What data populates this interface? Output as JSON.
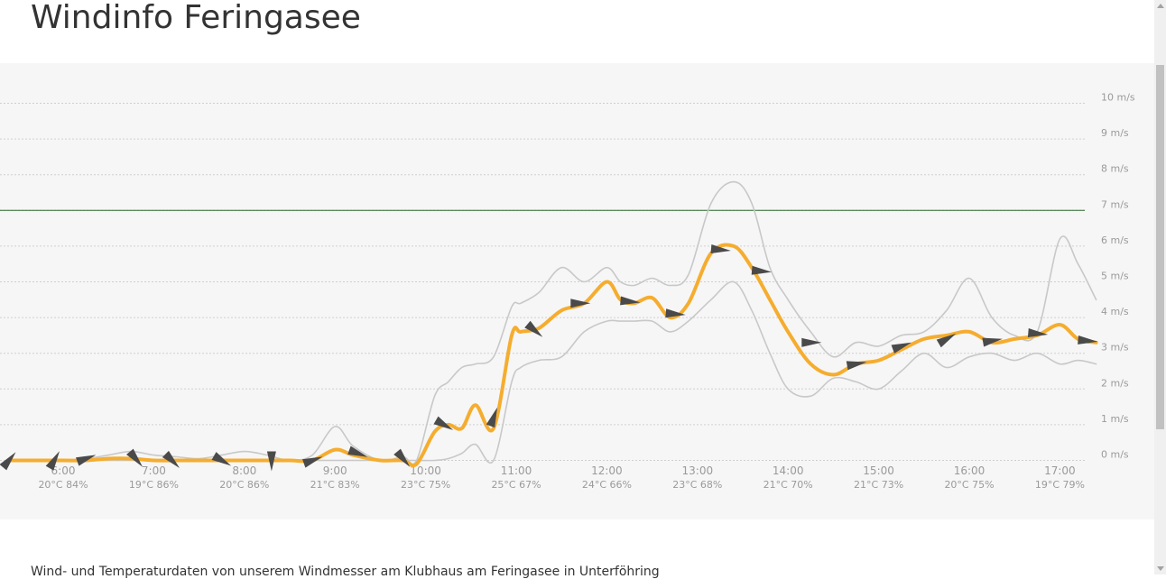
{
  "page": {
    "title": "Windinfo Feringasee",
    "footer": "Wind- und Temperaturdaten von unserem Windmesser am Klubhaus am Feringasee in Unterföhring"
  },
  "chart_data": {
    "type": "line",
    "title": "",
    "xlabel": "",
    "ylabel": "",
    "y_unit": "m/s",
    "ylim": [
      0,
      10
    ],
    "xlim": [
      5.5,
      17.4
    ],
    "grid": true,
    "y_ticks": [
      {
        "value": 0,
        "label": "0 m/s"
      },
      {
        "value": 1,
        "label": "1 m/s"
      },
      {
        "value": 2,
        "label": "2 m/s"
      },
      {
        "value": 3,
        "label": "3 m/s"
      },
      {
        "value": 4,
        "label": "4 m/s"
      },
      {
        "value": 5,
        "label": "5 m/s"
      },
      {
        "value": 6,
        "label": "6 m/s"
      },
      {
        "value": 7,
        "label": "7 m/s"
      },
      {
        "value": 8,
        "label": "8 m/s"
      },
      {
        "value": 9,
        "label": "9 m/s"
      },
      {
        "value": 10,
        "label": "10 m/s"
      }
    ],
    "x_ticks": [
      {
        "hour": 5,
        "time": "",
        "meta": "%"
      },
      {
        "hour": 6,
        "time": "6:00",
        "meta": "20°C 84%"
      },
      {
        "hour": 7,
        "time": "7:00",
        "meta": "19°C 86%"
      },
      {
        "hour": 8,
        "time": "8:00",
        "meta": "20°C 86%"
      },
      {
        "hour": 9,
        "time": "9:00",
        "meta": "21°C 83%"
      },
      {
        "hour": 10,
        "time": "10:00",
        "meta": "23°C 75%"
      },
      {
        "hour": 11,
        "time": "11:00",
        "meta": "25°C 67%"
      },
      {
        "hour": 12,
        "time": "12:00",
        "meta": "24°C 66%"
      },
      {
        "hour": 13,
        "time": "13:00",
        "meta": "23°C 68%"
      },
      {
        "hour": 14,
        "time": "14:00",
        "meta": "21°C 70%"
      },
      {
        "hour": 15,
        "time": "15:00",
        "meta": "21°C 73%"
      },
      {
        "hour": 16,
        "time": "16:00",
        "meta": "20°C 75%"
      },
      {
        "hour": 17,
        "time": "17:00",
        "meta": "19°C 79%"
      }
    ],
    "reference_line": {
      "value": 7,
      "color": "#2e6b2e"
    },
    "series": [
      {
        "role": "average",
        "color": "#f5ad2f",
        "x": [
          5.4,
          5.75,
          6.0,
          6.25,
          6.5,
          6.75,
          7.0,
          7.25,
          7.5,
          7.75,
          8.0,
          8.25,
          8.5,
          8.75,
          9.0,
          9.2,
          9.5,
          9.75,
          9.9,
          10.1,
          10.25,
          10.4,
          10.55,
          10.75,
          10.95,
          11.05,
          11.25,
          11.5,
          11.75,
          12.0,
          12.15,
          12.3,
          12.5,
          12.7,
          12.9,
          13.15,
          13.4,
          13.6,
          13.8,
          14.0,
          14.25,
          14.5,
          14.75,
          15.0,
          15.25,
          15.5,
          15.75,
          16.0,
          16.25,
          16.5,
          16.75,
          17.0,
          17.2,
          17.4
        ],
        "values": [
          0.0,
          0.0,
          0.0,
          0.0,
          0.05,
          0.05,
          0.0,
          0.0,
          0.0,
          0.0,
          0.0,
          0.0,
          0.0,
          0.0,
          0.3,
          0.15,
          0.0,
          0.0,
          -0.1,
          0.8,
          1.0,
          0.9,
          1.55,
          0.9,
          3.5,
          3.6,
          3.7,
          4.2,
          4.4,
          5.0,
          4.5,
          4.4,
          4.55,
          4.0,
          4.4,
          5.8,
          6.0,
          5.4,
          4.5,
          3.6,
          2.7,
          2.4,
          2.7,
          2.8,
          3.1,
          3.4,
          3.5,
          3.6,
          3.3,
          3.4,
          3.5,
          3.8,
          3.4,
          3.3
        ]
      },
      {
        "role": "gust",
        "color": "#c8c8c8",
        "x": [
          5.4,
          5.75,
          6.0,
          6.25,
          6.5,
          6.75,
          7.0,
          7.25,
          7.5,
          7.75,
          8.0,
          8.25,
          8.5,
          8.75,
          9.0,
          9.2,
          9.5,
          9.75,
          9.9,
          10.1,
          10.25,
          10.4,
          10.55,
          10.75,
          10.95,
          11.05,
          11.25,
          11.5,
          11.75,
          12.0,
          12.15,
          12.3,
          12.5,
          12.7,
          12.9,
          13.15,
          13.4,
          13.6,
          13.8,
          14.0,
          14.25,
          14.5,
          14.75,
          15.0,
          15.25,
          15.5,
          15.75,
          16.0,
          16.25,
          16.5,
          16.75,
          17.0,
          17.2,
          17.4
        ],
        "values": [
          0.0,
          0.0,
          0.0,
          0.05,
          0.15,
          0.25,
          0.15,
          0.1,
          0.05,
          0.15,
          0.25,
          0.15,
          0.0,
          0.15,
          0.95,
          0.4,
          0.0,
          0.1,
          0.0,
          1.8,
          2.2,
          2.6,
          2.7,
          2.9,
          4.3,
          4.4,
          4.7,
          5.4,
          5.0,
          5.4,
          5.0,
          4.9,
          5.1,
          4.9,
          5.2,
          7.2,
          7.8,
          7.2,
          5.4,
          4.5,
          3.6,
          2.9,
          3.3,
          3.2,
          3.5,
          3.6,
          4.2,
          5.1,
          4.0,
          3.5,
          3.6,
          6.2,
          5.5,
          4.5
        ]
      },
      {
        "role": "minimum",
        "color": "#c8c8c8",
        "x": [
          5.4,
          5.75,
          6.0,
          6.25,
          6.5,
          6.75,
          7.0,
          7.25,
          7.5,
          7.75,
          8.0,
          8.25,
          8.5,
          8.75,
          9.0,
          9.2,
          9.5,
          9.75,
          9.9,
          10.1,
          10.25,
          10.4,
          10.55,
          10.75,
          10.95,
          11.05,
          11.25,
          11.5,
          11.75,
          12.0,
          12.15,
          12.3,
          12.5,
          12.7,
          12.9,
          13.15,
          13.4,
          13.6,
          13.8,
          14.0,
          14.25,
          14.5,
          14.75,
          15.0,
          15.25,
          15.5,
          15.75,
          16.0,
          16.25,
          16.5,
          16.75,
          17.0,
          17.2,
          17.4
        ],
        "values": [
          0.0,
          0.0,
          0.0,
          0.0,
          0.0,
          0.0,
          0.0,
          0.0,
          0.0,
          0.0,
          0.0,
          0.0,
          0.0,
          0.0,
          0.0,
          0.0,
          0.0,
          0.0,
          0.0,
          0.0,
          0.05,
          0.2,
          0.45,
          0.0,
          2.2,
          2.6,
          2.8,
          2.9,
          3.6,
          3.9,
          3.9,
          3.9,
          3.9,
          3.6,
          3.9,
          4.5,
          5.0,
          4.2,
          3.0,
          2.0,
          1.8,
          2.3,
          2.2,
          2.0,
          2.5,
          3.0,
          2.6,
          2.9,
          3.0,
          2.8,
          3.0,
          2.7,
          2.8,
          2.7
        ]
      }
    ],
    "wind_direction_markers": [
      {
        "hour": 5.4,
        "value": 0.0,
        "bearing": 40
      },
      {
        "hour": 5.9,
        "value": 0.0,
        "bearing": 30
      },
      {
        "hour": 6.25,
        "value": 0.05,
        "bearing": 70
      },
      {
        "hour": 6.8,
        "value": 0.05,
        "bearing": 140
      },
      {
        "hour": 7.2,
        "value": 0.0,
        "bearing": 135
      },
      {
        "hour": 7.75,
        "value": 0.0,
        "bearing": 120
      },
      {
        "hour": 8.3,
        "value": 0.0,
        "bearing": 180
      },
      {
        "hour": 8.75,
        "value": 0.0,
        "bearing": 70
      },
      {
        "hour": 9.25,
        "value": 0.2,
        "bearing": 110
      },
      {
        "hour": 9.75,
        "value": 0.05,
        "bearing": 140
      },
      {
        "hour": 10.2,
        "value": 1.0,
        "bearing": 120
      },
      {
        "hour": 10.75,
        "value": 1.2,
        "bearing": 20
      },
      {
        "hour": 11.2,
        "value": 3.65,
        "bearing": 130
      },
      {
        "hour": 11.7,
        "value": 4.4,
        "bearing": 90
      },
      {
        "hour": 12.25,
        "value": 4.45,
        "bearing": 95
      },
      {
        "hour": 12.75,
        "value": 4.1,
        "bearing": 95
      },
      {
        "hour": 13.25,
        "value": 5.9,
        "bearing": 95
      },
      {
        "hour": 13.7,
        "value": 5.3,
        "bearing": 95
      },
      {
        "hour": 14.25,
        "value": 3.3,
        "bearing": 90
      },
      {
        "hour": 14.75,
        "value": 2.7,
        "bearing": 80
      },
      {
        "hour": 15.25,
        "value": 3.2,
        "bearing": 70
      },
      {
        "hour": 15.75,
        "value": 3.4,
        "bearing": 60
      },
      {
        "hour": 16.25,
        "value": 3.35,
        "bearing": 80
      },
      {
        "hour": 16.75,
        "value": 3.55,
        "bearing": 95
      },
      {
        "hour": 17.3,
        "value": 3.35,
        "bearing": 95
      }
    ],
    "marker_color": "#4a4a4a"
  }
}
